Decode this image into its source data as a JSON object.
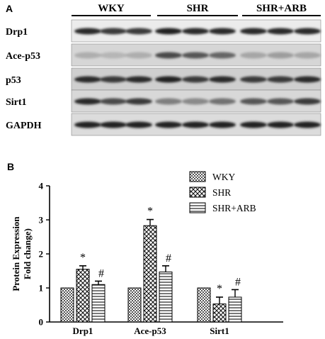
{
  "blot": {
    "panel_label": "A",
    "groups": [
      "WKY",
      "SHR",
      "SHR+ARB"
    ],
    "proteins": [
      "Drp1",
      "Ace-p53",
      "p53",
      "Sirt1",
      "GAPDH"
    ]
  },
  "chart_data": {
    "type": "bar",
    "panel_label": "B",
    "title": "",
    "xlabel": "",
    "ylabel_line1": "Protein Expression",
    "ylabel_line2": "Fold change)",
    "ylim": [
      0,
      4
    ],
    "yticks": [
      "0",
      "1",
      "2",
      "3",
      "4"
    ],
    "categories": [
      "Drp1",
      "Ace-p53",
      "Sirt1"
    ],
    "series": [
      {
        "name": "WKY",
        "values": [
          1.0,
          1.0,
          1.0
        ],
        "errors": [
          0,
          0,
          0
        ],
        "marks": [
          "",
          "",
          ""
        ],
        "pattern": "checker"
      },
      {
        "name": "SHR",
        "values": [
          1.55,
          2.83,
          0.53
        ],
        "errors": [
          0.1,
          0.18,
          0.2
        ],
        "marks": [
          "*",
          "*",
          "*"
        ],
        "pattern": "diamond"
      },
      {
        "name": "SHR+ARB",
        "values": [
          1.1,
          1.47,
          0.73
        ],
        "errors": [
          0.1,
          0.18,
          0.22
        ],
        "marks": [
          "#",
          "#",
          "#"
        ],
        "pattern": "hline"
      }
    ],
    "legend_position": "top-right",
    "grid": false
  }
}
